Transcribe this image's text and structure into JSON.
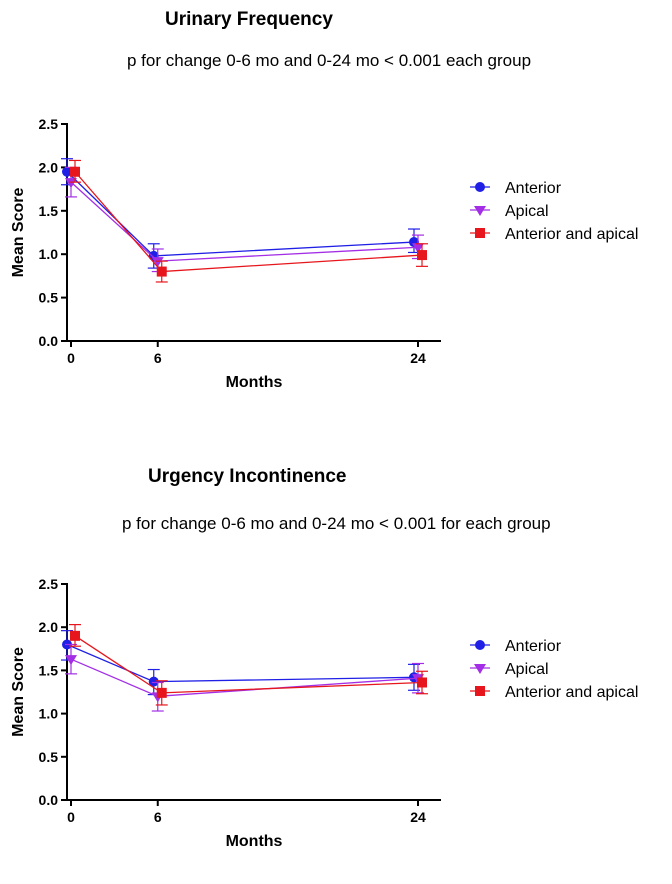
{
  "series_colors": {
    "Anterior": "#1f1fe6",
    "Apical": "#a32ee6",
    "Anterior and apical": "#e6161c"
  },
  "chart_data": [
    {
      "type": "line",
      "title": "Urinary Frequency",
      "subtitle": "p for change 0-6 mo and 0-24 mo < 0.001 each group",
      "xlabel": "Months",
      "ylabel": "Mean Score",
      "x": [
        0,
        6,
        24
      ],
      "x_tick_labels": [
        "0",
        "6",
        "24"
      ],
      "ylim": [
        0,
        2.5
      ],
      "y_ticks": [
        "0.0",
        "0.5",
        "1.0",
        "1.5",
        "2.0",
        "2.5"
      ],
      "grid": false,
      "legend_position": "right",
      "series": [
        {
          "name": "Anterior",
          "marker": "circle",
          "values": [
            1.95,
            0.98,
            1.14
          ],
          "err_low": [
            1.8,
            0.84,
            1.02
          ],
          "err_high": [
            2.1,
            1.12,
            1.29
          ]
        },
        {
          "name": "Apical",
          "marker": "triangle-down",
          "values": [
            1.83,
            0.92,
            1.08
          ],
          "err_low": [
            1.66,
            0.8,
            0.95
          ],
          "err_high": [
            2.0,
            1.06,
            1.22
          ]
        },
        {
          "name": "Anterior and apical",
          "marker": "square",
          "values": [
            1.95,
            0.8,
            0.99
          ],
          "err_low": [
            1.83,
            0.68,
            0.86
          ],
          "err_high": [
            2.08,
            0.92,
            1.12
          ]
        }
      ]
    },
    {
      "type": "line",
      "title": "Urgency Incontinence",
      "subtitle": "p for change 0-6 mo and 0-24 mo < 0.001 for each group",
      "xlabel": "Months",
      "ylabel": "Mean Score",
      "x": [
        0,
        6,
        24
      ],
      "x_tick_labels": [
        "0",
        "6",
        "24"
      ],
      "ylim": [
        0,
        2.5
      ],
      "y_ticks": [
        "0.0",
        "0.5",
        "1.0",
        "1.5",
        "2.0",
        "2.5"
      ],
      "grid": false,
      "legend_position": "right",
      "series": [
        {
          "name": "Anterior",
          "marker": "circle",
          "values": [
            1.8,
            1.37,
            1.42
          ],
          "err_low": [
            1.62,
            1.22,
            1.27
          ],
          "err_high": [
            1.96,
            1.51,
            1.57
          ]
        },
        {
          "name": "Apical",
          "marker": "triangle-down",
          "values": [
            1.63,
            1.2,
            1.41
          ],
          "err_low": [
            1.46,
            1.03,
            1.24
          ],
          "err_high": [
            1.8,
            1.36,
            1.58
          ]
        },
        {
          "name": "Anterior and apical",
          "marker": "square",
          "values": [
            1.9,
            1.24,
            1.36
          ],
          "err_low": [
            1.78,
            1.1,
            1.23
          ],
          "err_high": [
            2.03,
            1.38,
            1.49
          ]
        }
      ]
    }
  ]
}
